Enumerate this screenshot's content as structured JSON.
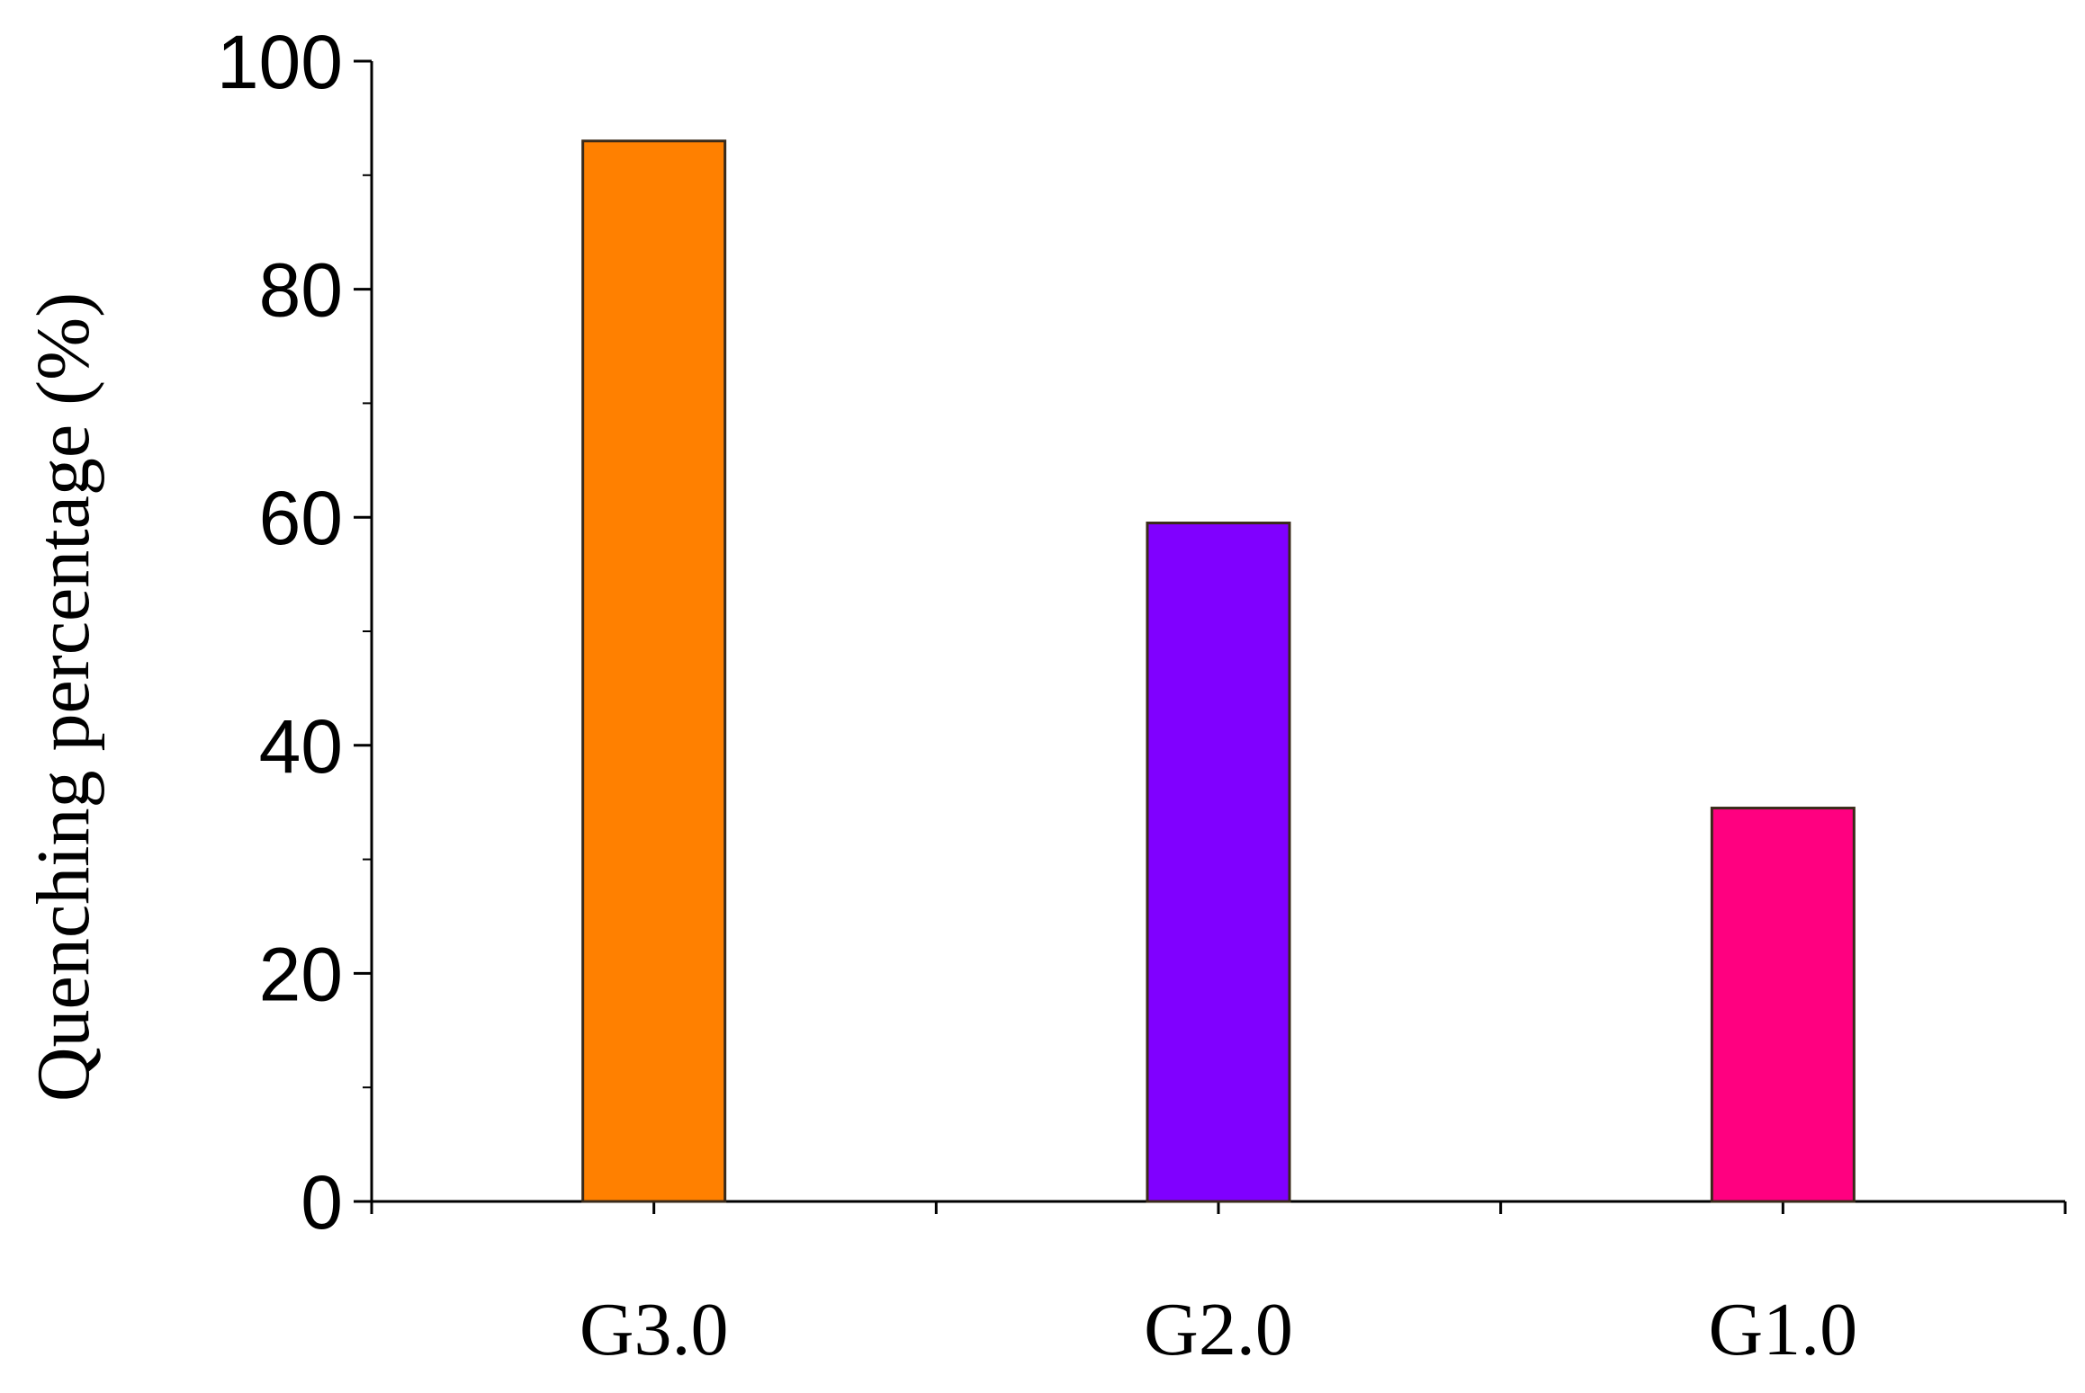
{
  "chart_data": {
    "type": "bar",
    "title": "",
    "xlabel": "",
    "ylabel": "Quenching percentage (%)",
    "categories": [
      "G3.0",
      "G2.0",
      "G1.0"
    ],
    "values": [
      93,
      59.5,
      34.5
    ],
    "bar_colors": [
      "#ff8000",
      "#8000ff",
      "#ff0080"
    ],
    "bar_edge_color": "#3a2a1a",
    "ylim": [
      0,
      100
    ],
    "yticks": [
      0,
      20,
      40,
      60,
      80,
      100
    ],
    "yminor_step": 10,
    "grid": false,
    "legend": "none"
  }
}
